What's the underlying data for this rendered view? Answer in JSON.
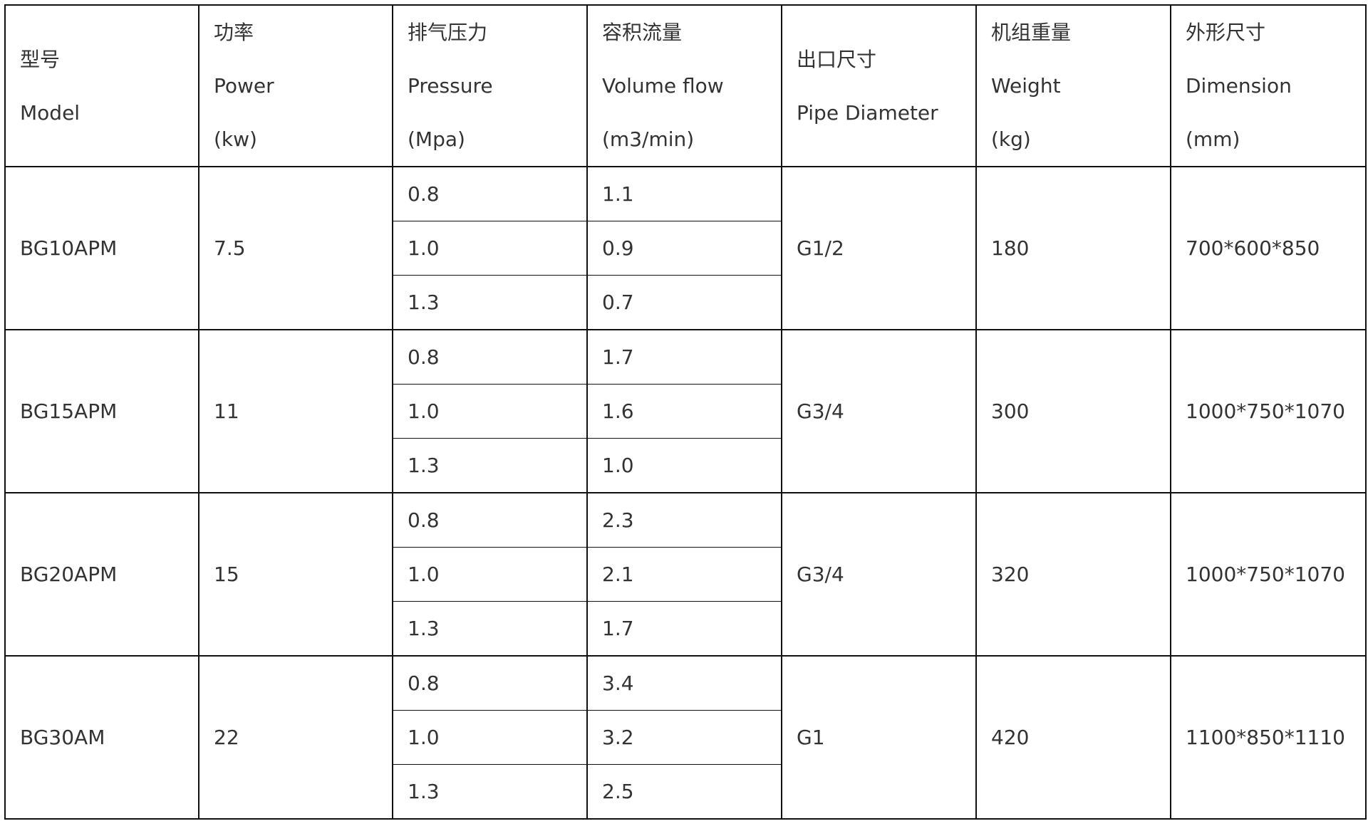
{
  "headers": [
    {
      "lines": [
        "型号",
        "Model"
      ]
    },
    {
      "lines": [
        "功率",
        "Power",
        "(kw)"
      ]
    },
    {
      "lines": [
        "排气压力",
        "Pressure",
        "(Mpa)"
      ]
    },
    {
      "lines": [
        "容积流量",
        "Volume flow",
        "(m3/min)"
      ]
    },
    {
      "lines": [
        "出口尺寸",
        "Pipe Diameter"
      ]
    },
    {
      "lines": [
        "机组重量",
        "Weight",
        "(kg)"
      ]
    },
    {
      "lines": [
        "外形尺寸",
        "Dimension",
        "(mm)"
      ]
    }
  ],
  "rows": [
    {
      "model": "BG10APM",
      "power": "7.5",
      "pressure": [
        "0.8",
        "1.0",
        "1.3"
      ],
      "flow": [
        "1.1",
        "0.9",
        "0.7"
      ],
      "pipe": "G1/2",
      "weight": "180",
      "dimension": "700*600*850"
    },
    {
      "model": "BG15APM",
      "power": "11",
      "pressure": [
        "0.8",
        "1.0",
        "1.3"
      ],
      "flow": [
        "1.7",
        "1.6",
        "1.0"
      ],
      "pipe": "G3/4",
      "weight": "300",
      "dimension": "1000*750*1070"
    },
    {
      "model": "BG20APM",
      "power": "15",
      "pressure": [
        "0.8",
        "1.0",
        "1.3"
      ],
      "flow": [
        "2.3",
        "2.1",
        "1.7"
      ],
      "pipe": "G3/4",
      "weight": "320",
      "dimension": "1000*750*1070"
    },
    {
      "model": "BG30AM",
      "power": "22",
      "pressure": [
        "0.8",
        "1.0",
        "1.3"
      ],
      "flow": [
        "3.4",
        "3.2",
        "2.5"
      ],
      "pipe": "G1",
      "weight": "420",
      "dimension": "1100*850*1110"
    }
  ]
}
